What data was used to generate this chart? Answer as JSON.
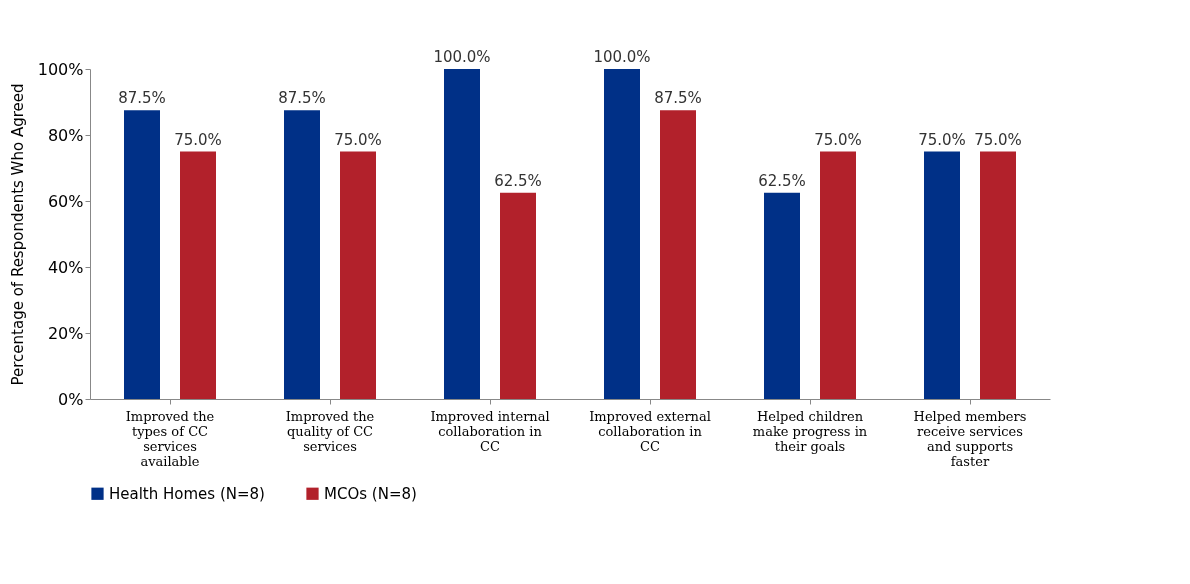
{
  "chart_data": {
    "type": "bar",
    "ylabel": "Percentage of Respondents Who Agreed",
    "categories": [
      "Improved the types of CC services available",
      "Improved the quality of CC services",
      "Improved internal collaboration in CC",
      "Improved external collaboration in CC",
      "Helped children make progress in their goals",
      "Helped members receive services and supports faster"
    ],
    "series": [
      {
        "name": "Health Homes (N=8)",
        "color": "#003087",
        "values": [
          87.5,
          87.5,
          100,
          100,
          62.5,
          75
        ],
        "value_labels": [
          "87.5%",
          "87.5%",
          "100.0%",
          "100.0%",
          "62.5%",
          "75.0%"
        ]
      },
      {
        "name": "MCOs (N=8)",
        "color": "#b2212b",
        "values": [
          75,
          75,
          62.5,
          87.5,
          75,
          75
        ],
        "value_labels": [
          "75.0%",
          "75.0%",
          "62.5%",
          "87.5%",
          "75.0%",
          "75.0%"
        ]
      }
    ],
    "ylim": [
      0,
      100
    ],
    "yticks": [
      {
        "value": 0,
        "label": "0%"
      },
      {
        "value": 20,
        "label": "20%"
      },
      {
        "value": 40,
        "label": "40%"
      },
      {
        "value": 60,
        "label": "60%"
      },
      {
        "value": 80,
        "label": "80%"
      },
      {
        "value": 100,
        "label": "100%"
      }
    ],
    "grid": false,
    "legend": "bottom"
  }
}
